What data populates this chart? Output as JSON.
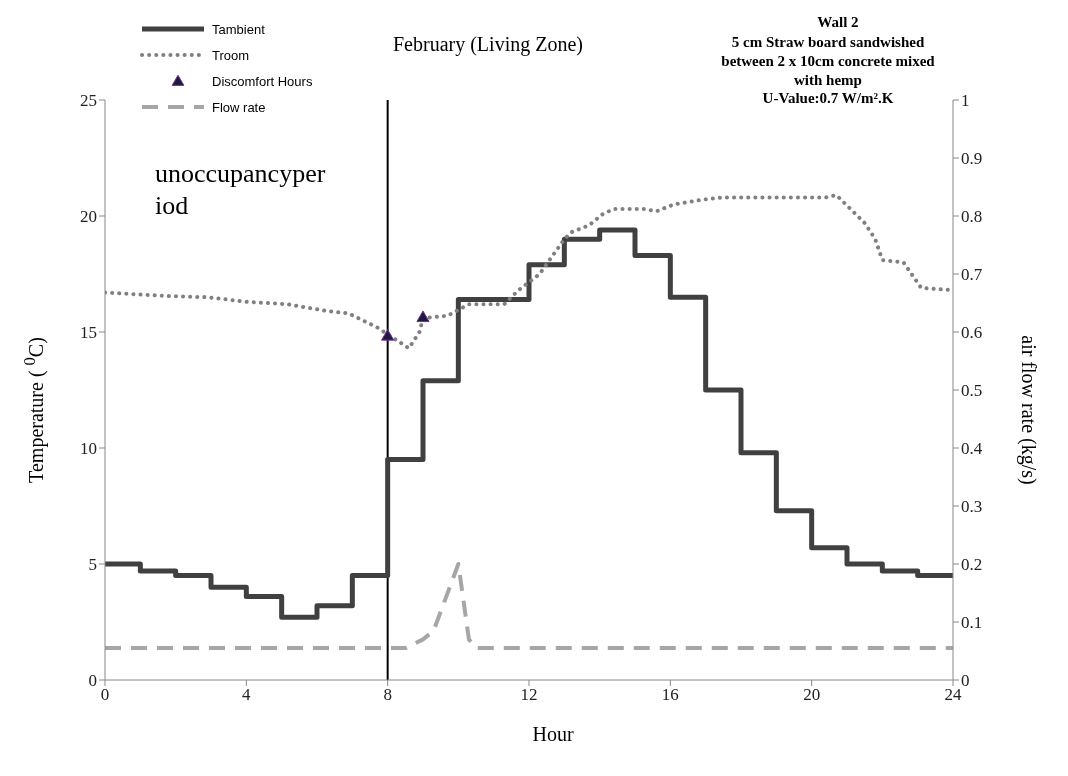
{
  "chart_data": {
    "type": "line",
    "title": "Wall 2",
    "subtitle": "5 cm Straw board sandwished between 2 x 10cm concrete mixed with hemp",
    "xlabel": "Hour",
    "ylabel": "Temperature ( $^{0}$C)",
    "y2label": "air  flow rate (kg/s)",
    "annotations": [
      "U-Value:0.7 W/m².K",
      "February  (Living Zone)",
      "unoccupancyperiod"
    ],
    "xlim": [
      0,
      24
    ],
    "xticks": [
      0,
      4,
      8,
      12,
      16,
      20,
      24
    ],
    "ylim": [
      0,
      25
    ],
    "yticks": [
      0,
      5,
      10,
      15,
      20,
      25
    ],
    "y2lim": [
      0,
      1
    ],
    "y2ticks": [
      0,
      0.1,
      0.2,
      0.3,
      0.4,
      0.5,
      0.6,
      0.7,
      0.8,
      0.9,
      1
    ],
    "legend": "top left",
    "ref_lines": [
      {
        "axis": "x",
        "value": 8,
        "color": "#000000",
        "line_style": "solid"
      }
    ],
    "series": [
      {
        "name": "Tambient",
        "type": "step",
        "color": "#404040",
        "line_style": "solid",
        "x": [
          0,
          1,
          2,
          3,
          4,
          5,
          6,
          7,
          8,
          9,
          10,
          11,
          12,
          13,
          14,
          15,
          16,
          17,
          18,
          19,
          20,
          21,
          22,
          23,
          24
        ],
        "values": [
          5.0,
          4.7,
          4.5,
          4.0,
          3.6,
          2.7,
          3.2,
          4.5,
          9.5,
          12.9,
          16.4,
          16.4,
          17.9,
          19.0,
          19.4,
          18.3,
          16.5,
          12.5,
          9.8,
          7.3,
          5.7,
          5.0,
          4.7,
          4.5,
          4.5
        ]
      },
      {
        "name": "Troom",
        "color": "#808080",
        "line_style": "dotted",
        "x": [
          0,
          1.75,
          2.9,
          4.0,
          5.15,
          6.3,
          6.9,
          7.7,
          8.0,
          8.6,
          8.9,
          9.0,
          9.7,
          10.3,
          11.3,
          11.7,
          12.3,
          13.0,
          13.2,
          13.7,
          14.1,
          14.4,
          15.3,
          15.6,
          16.1,
          16.9,
          17.5,
          20.4,
          20.7,
          21.1,
          21.5,
          21.8,
          22.0,
          22.6,
          23.1,
          24
        ],
        "values": [
          16.7,
          16.55,
          16.5,
          16.3,
          16.2,
          15.9,
          15.8,
          15.2,
          14.9,
          14.3,
          15.0,
          15.6,
          15.7,
          16.2,
          16.2,
          16.8,
          17.5,
          19.0,
          19.3,
          19.6,
          20.1,
          20.3,
          20.3,
          20.2,
          20.5,
          20.7,
          20.8,
          20.8,
          20.9,
          20.3,
          19.7,
          19.0,
          18.1,
          18.0,
          16.9,
          16.8
        ]
      },
      {
        "name": "Discomfort Hours",
        "type": "scatter",
        "color": "#1f1a3d",
        "marker": "triangle",
        "x": [
          8,
          9
        ],
        "values": [
          14.8,
          15.6
        ]
      },
      {
        "name": "Flow rate",
        "axis": "y2",
        "color": "#a6a6a6",
        "line_style": "dashed",
        "x": [
          0,
          8.5,
          9,
          9.3,
          10,
          10.3,
          10.5,
          24
        ],
        "values": [
          0.055,
          0.055,
          0.07,
          0.085,
          0.2,
          0.07,
          0.055,
          0.055
        ]
      }
    ]
  }
}
